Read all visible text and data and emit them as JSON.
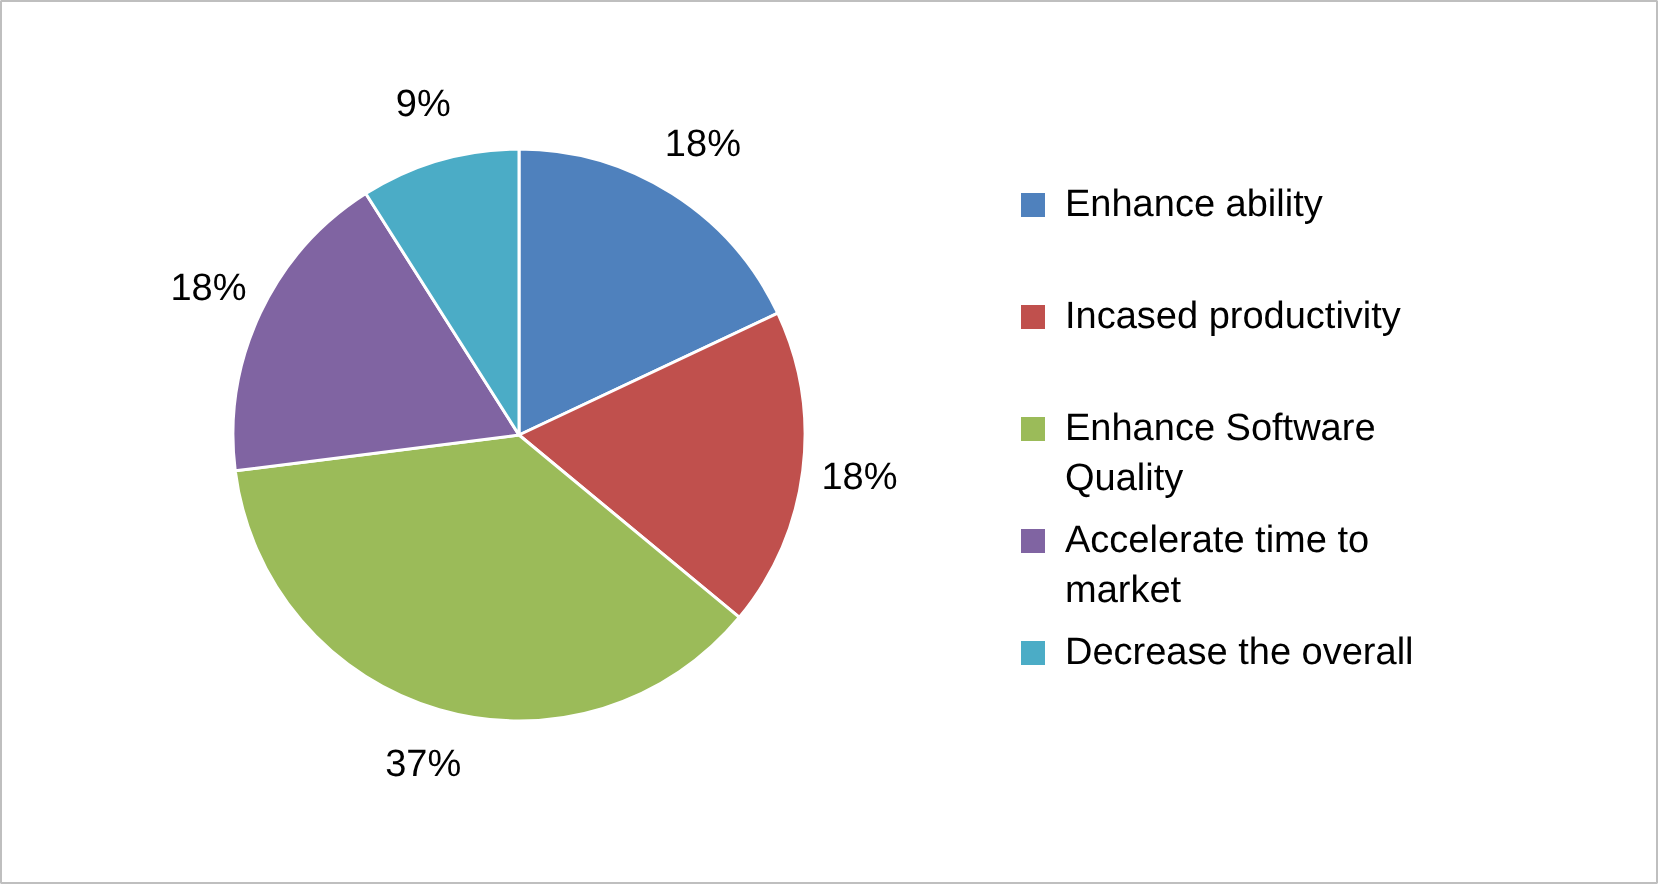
{
  "chart_data": {
    "type": "pie",
    "categories": [
      "Enhance ability",
      "Incased productivity",
      "Enhance Software Quality",
      "Accelerate time to market",
      "Decrease the overall"
    ],
    "values": [
      18,
      18,
      37,
      18,
      9
    ],
    "colors": [
      "#4f81bd",
      "#c0504d",
      "#9bbb59",
      "#8064a2",
      "#4bacc6"
    ],
    "value_labels": [
      "18%",
      "18%",
      "37%",
      "18%",
      "9%"
    ],
    "legend": "right"
  }
}
